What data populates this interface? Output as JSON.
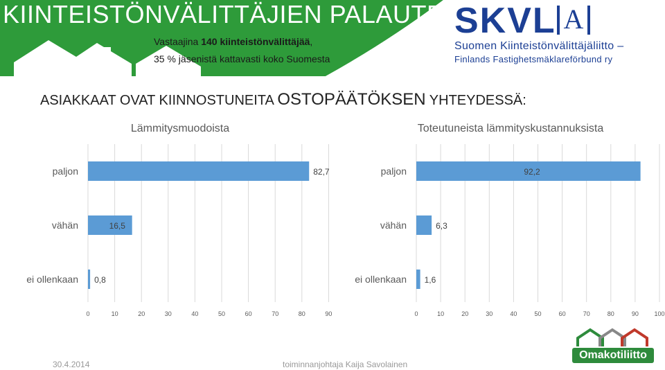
{
  "header": {
    "title": "KIINTEISTÖNVÄLITTÄJIEN PALAUTE",
    "sub_prefix": "Vastaajina ",
    "sub_bold": "140 kiinteistönvälittäjää",
    "sub_suffix": ",",
    "sub_line2": "35 % jäsenistä kattavasti koko Suomesta",
    "banner_color": "#2e9b3a"
  },
  "skvl": {
    "big": "SKVL",
    "a": "A",
    "line1": "Suomen Kiinteistönvälittäjäliitto –",
    "line2": "Finlands Fastighetsmäklareförbund ry",
    "color": "#1c3f94"
  },
  "headline": {
    "part1": "ASIAKKAAT OVAT KIINNOSTUNEITA ",
    "part2": "OSTOPÄÄTÖKSEN",
    "part3": " YHTEYDESSÄ:"
  },
  "chart_data": [
    {
      "type": "bar",
      "orientation": "horizontal",
      "title": "Lämmitysmuodoista",
      "categories": [
        "paljon",
        "vähän",
        "ei ollenkaan"
      ],
      "values": [
        82.7,
        16.5,
        0.8
      ],
      "value_labels": [
        "82,7",
        "16,5",
        "0,8"
      ],
      "xlim": [
        0,
        90
      ],
      "ticks": [
        "0",
        "10",
        "20",
        "30",
        "40",
        "50",
        "60",
        "70",
        "80",
        "90"
      ],
      "grid": true,
      "bar_color": "#5b9bd5"
    },
    {
      "type": "bar",
      "orientation": "horizontal",
      "title": "Toteutuneista lämmityskustannuksista",
      "categories": [
        "paljon",
        "vähän",
        "ei ollenkaan"
      ],
      "values": [
        92.2,
        6.3,
        1.6
      ],
      "value_labels": [
        "92,2",
        "6,3",
        "1,6"
      ],
      "xlim": [
        0,
        100
      ],
      "ticks": [
        "0",
        "10",
        "20",
        "30",
        "40",
        "50",
        "60",
        "70",
        "80",
        "90",
        "100"
      ],
      "grid": true,
      "bar_color": "#5b9bd5"
    }
  ],
  "footer": {
    "date": "30.4.2014",
    "author": "toiminnanjohtaja Kaija Savolainen"
  },
  "omakotiliitto": {
    "name": "Omakotiliitto"
  }
}
